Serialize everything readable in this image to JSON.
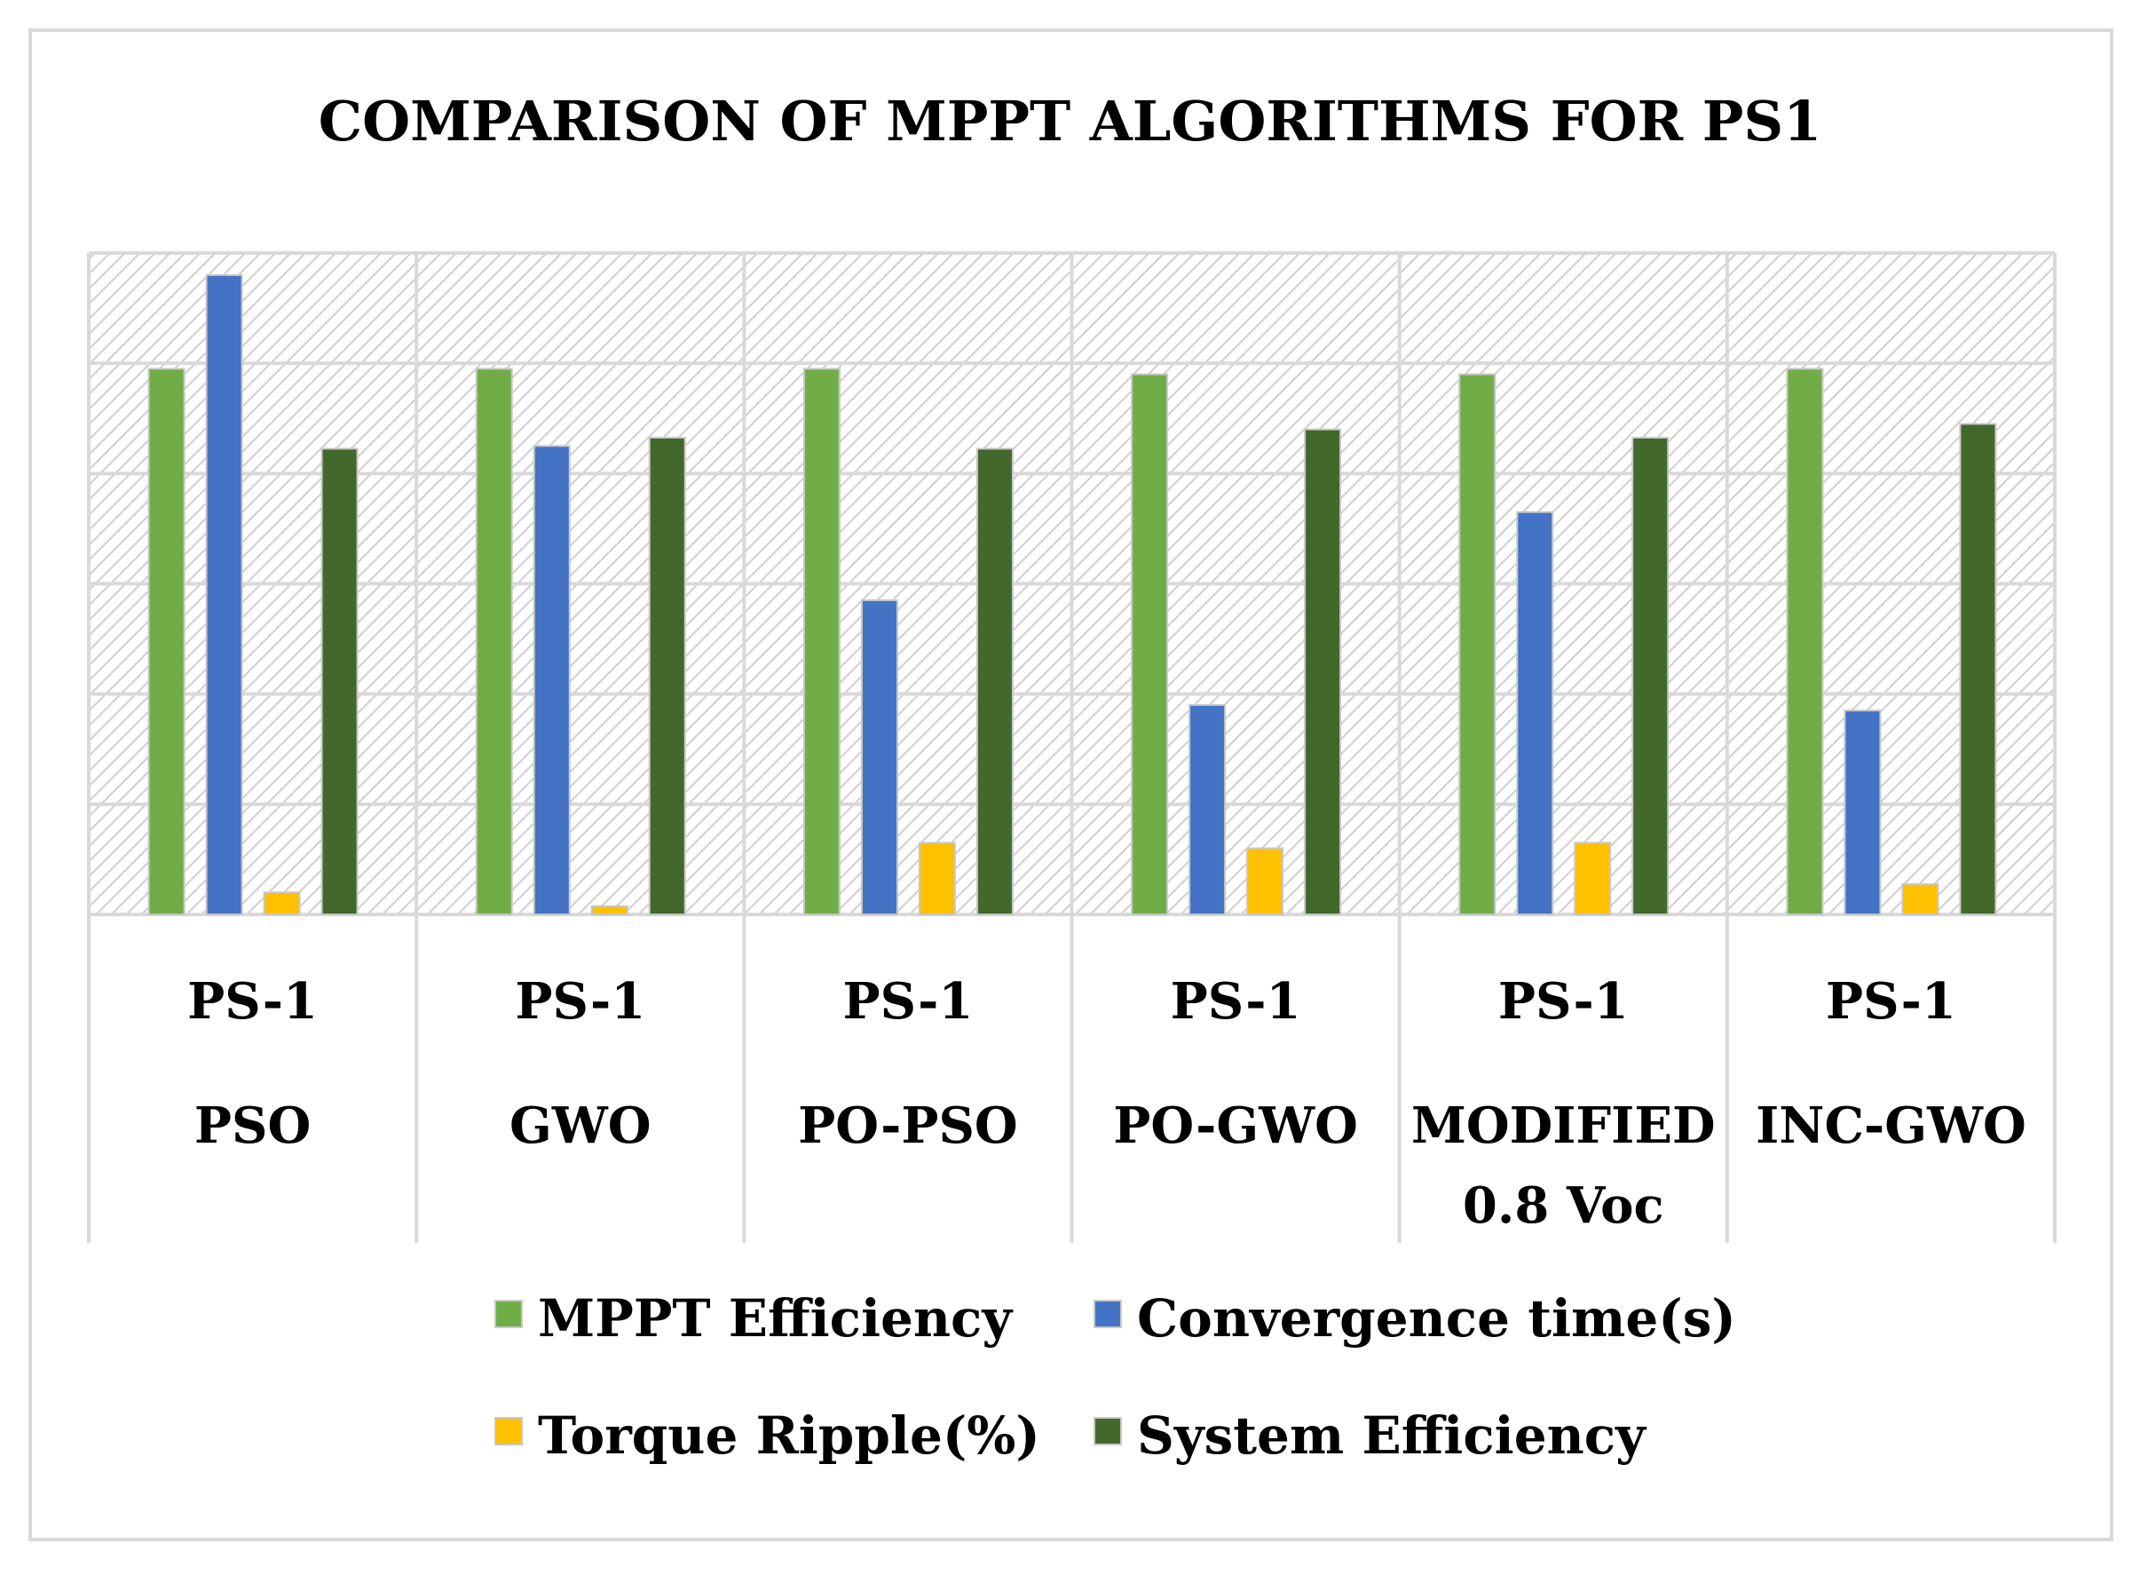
{
  "chart_data": {
    "type": "bar",
    "title": "COMPARISON OF MPPT ALGORITHMS FOR PS1",
    "xlabel": "",
    "ylabel": "",
    "ylim": [
      0,
      120
    ],
    "grid": true,
    "legend_position": "bottom",
    "categories": [
      {
        "line1": "PS-1",
        "line2": "PSO",
        "line3": ""
      },
      {
        "line1": "PS-1",
        "line2": "GWO",
        "line3": ""
      },
      {
        "line1": "PS-1",
        "line2": "PO-PSO",
        "line3": ""
      },
      {
        "line1": "PS-1",
        "line2": "PO-GWO",
        "line3": ""
      },
      {
        "line1": "PS-1",
        "line2": "MODIFIED",
        "line3": "0.8 Voc"
      },
      {
        "line1": "PS-1",
        "line2": "INC-GWO",
        "line3": ""
      }
    ],
    "series": [
      {
        "name": "MPPT Efficiency",
        "color": "#70ad47",
        "values": [
          99,
          99,
          99,
          98,
          98,
          99
        ]
      },
      {
        "name": "Convergence time(s)",
        "color": "#4472c4",
        "values": [
          116,
          85,
          57,
          38,
          73,
          37
        ]
      },
      {
        "name": "Torque Ripple(%)",
        "color": "#ffc000",
        "values": [
          4,
          1.5,
          13,
          12,
          13,
          5.5
        ]
      },
      {
        "name": "System Efficiency",
        "color": "#43682b",
        "values": [
          84.5,
          86.5,
          84.5,
          88,
          86.5,
          89
        ]
      }
    ]
  }
}
